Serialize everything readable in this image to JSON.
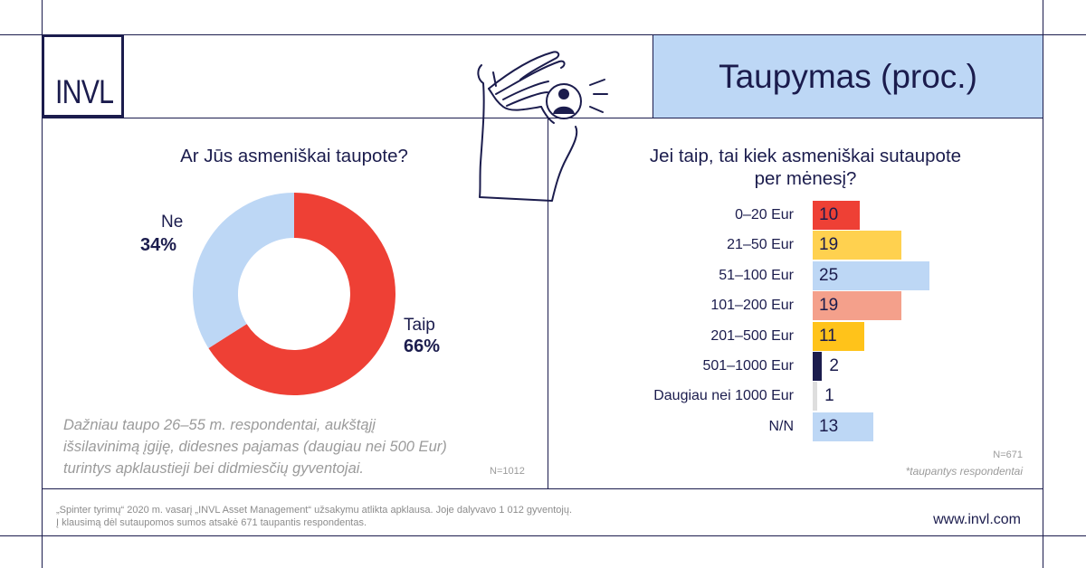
{
  "brand": {
    "logo_text": "INVL",
    "website": "www.invl.com"
  },
  "header": {
    "title": "Taupymas (proc.)"
  },
  "colors": {
    "navy": "#1b1c4d",
    "title_box": "#bdd7f5",
    "muted_text": "#9b9b9b"
  },
  "illustration": {
    "icon": "hand-holding-coin-icon"
  },
  "left_panel": {
    "note_lines": [
      "Dažniau taupo 26–55 m. respondentai, aukštąjį",
      "išsilavinimą įgiję, didesnes pajamas (daugiau nei 500 Eur)",
      "turintys apklaustieji bei didmiesčių gyventojai."
    ],
    "sample": "N=1012"
  },
  "right_panel": {
    "sample": "N=671",
    "footnote": "*taupantys respondentai"
  },
  "footer": {
    "line1": "„Spinter tyrimų“ 2020 m. vasarį „INVL Asset Management“ užsakymu atlikta apklausa. Joje dalyvavo 1 012 gyventojų.",
    "line2": "Į klausimą dėl sutaupomos sumos atsakė 671 taupantis respondentas."
  },
  "chart_data": [
    {
      "type": "pie",
      "donut": true,
      "title": "Ar Jūs asmeniškai taupote?",
      "labels": [
        "Taip",
        "Ne"
      ],
      "values": [
        66,
        34
      ],
      "value_labels": [
        "66%",
        "34%"
      ],
      "colors": [
        "#ee4035",
        "#bdd7f5"
      ]
    },
    {
      "type": "bar",
      "orientation": "horizontal",
      "title_lines": [
        "Jei taip, tai kiek asmeniškai sutaupote",
        "per mėnesį?"
      ],
      "categories": [
        "0–20 Eur",
        "21–50 Eur",
        "51–100 Eur",
        "101–200 Eur",
        "201–500 Eur",
        "501–1000 Eur",
        "Daugiau nei 1000 Eur",
        "N/N"
      ],
      "values": [
        10,
        19,
        25,
        19,
        11,
        2,
        1,
        13
      ],
      "colors": [
        "#ee4035",
        "#ffd14f",
        "#bdd7f5",
        "#f4a08b",
        "#ffc31a",
        "#1b1c4d",
        "#dedede",
        "#bdd7f5"
      ],
      "grid": false,
      "data_labels": true
    }
  ]
}
